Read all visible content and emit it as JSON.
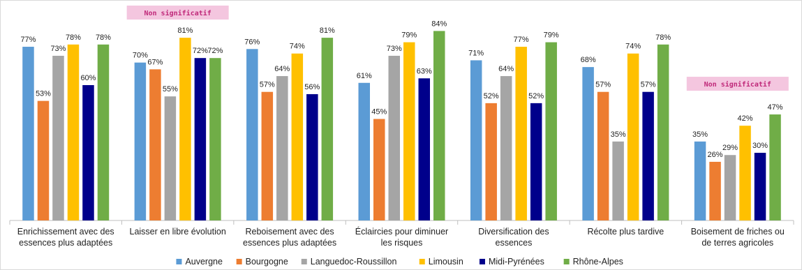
{
  "chart_data": {
    "type": "bar",
    "categories": [
      [
        "Enrichissement avec des",
        "essences plus adaptées"
      ],
      [
        "Laisser en libre évolution"
      ],
      [
        "Reboisement avec des",
        "essences plus adaptées"
      ],
      [
        "Éclaircies pour diminuer",
        "les risques"
      ],
      [
        "Diversification des",
        "essences"
      ],
      [
        "Récolte plus tardive"
      ],
      [
        "Boisement de friches ou",
        "de terres agricoles"
      ]
    ],
    "series": [
      {
        "name": "Auvergne",
        "color": "#5B9BD5",
        "values": [
          77,
          70,
          76,
          61,
          71,
          68,
          35
        ]
      },
      {
        "name": "Bourgogne",
        "color": "#ED7D31",
        "values": [
          53,
          67,
          57,
          45,
          52,
          57,
          26
        ]
      },
      {
        "name": "Languedoc-Roussillon",
        "color": "#A5A5A5",
        "values": [
          73,
          55,
          64,
          73,
          64,
          35,
          29
        ]
      },
      {
        "name": "Limousin",
        "color": "#FFC000",
        "values": [
          78,
          81,
          74,
          79,
          77,
          74,
          42
        ]
      },
      {
        "name": "Midi-Pyrénées",
        "color": "#00008B",
        "values": [
          60,
          72,
          56,
          63,
          52,
          57,
          30
        ]
      },
      {
        "name": "Rhône-Alpes",
        "color": "#70AD47",
        "values": [
          78,
          72,
          81,
          84,
          79,
          78,
          47
        ]
      }
    ],
    "value_suffix": "%",
    "ylim": [
      0,
      90
    ],
    "legend_position": "bottom",
    "grid": false,
    "annotations": [
      {
        "category_index": 1,
        "text": "Non significatif"
      },
      {
        "category_index": 6,
        "text": "Non significatif"
      }
    ]
  },
  "colors": {
    "badge_bg": "#F4C6DF",
    "badge_text": "#C0297A",
    "axis": "#bfbfbf"
  }
}
